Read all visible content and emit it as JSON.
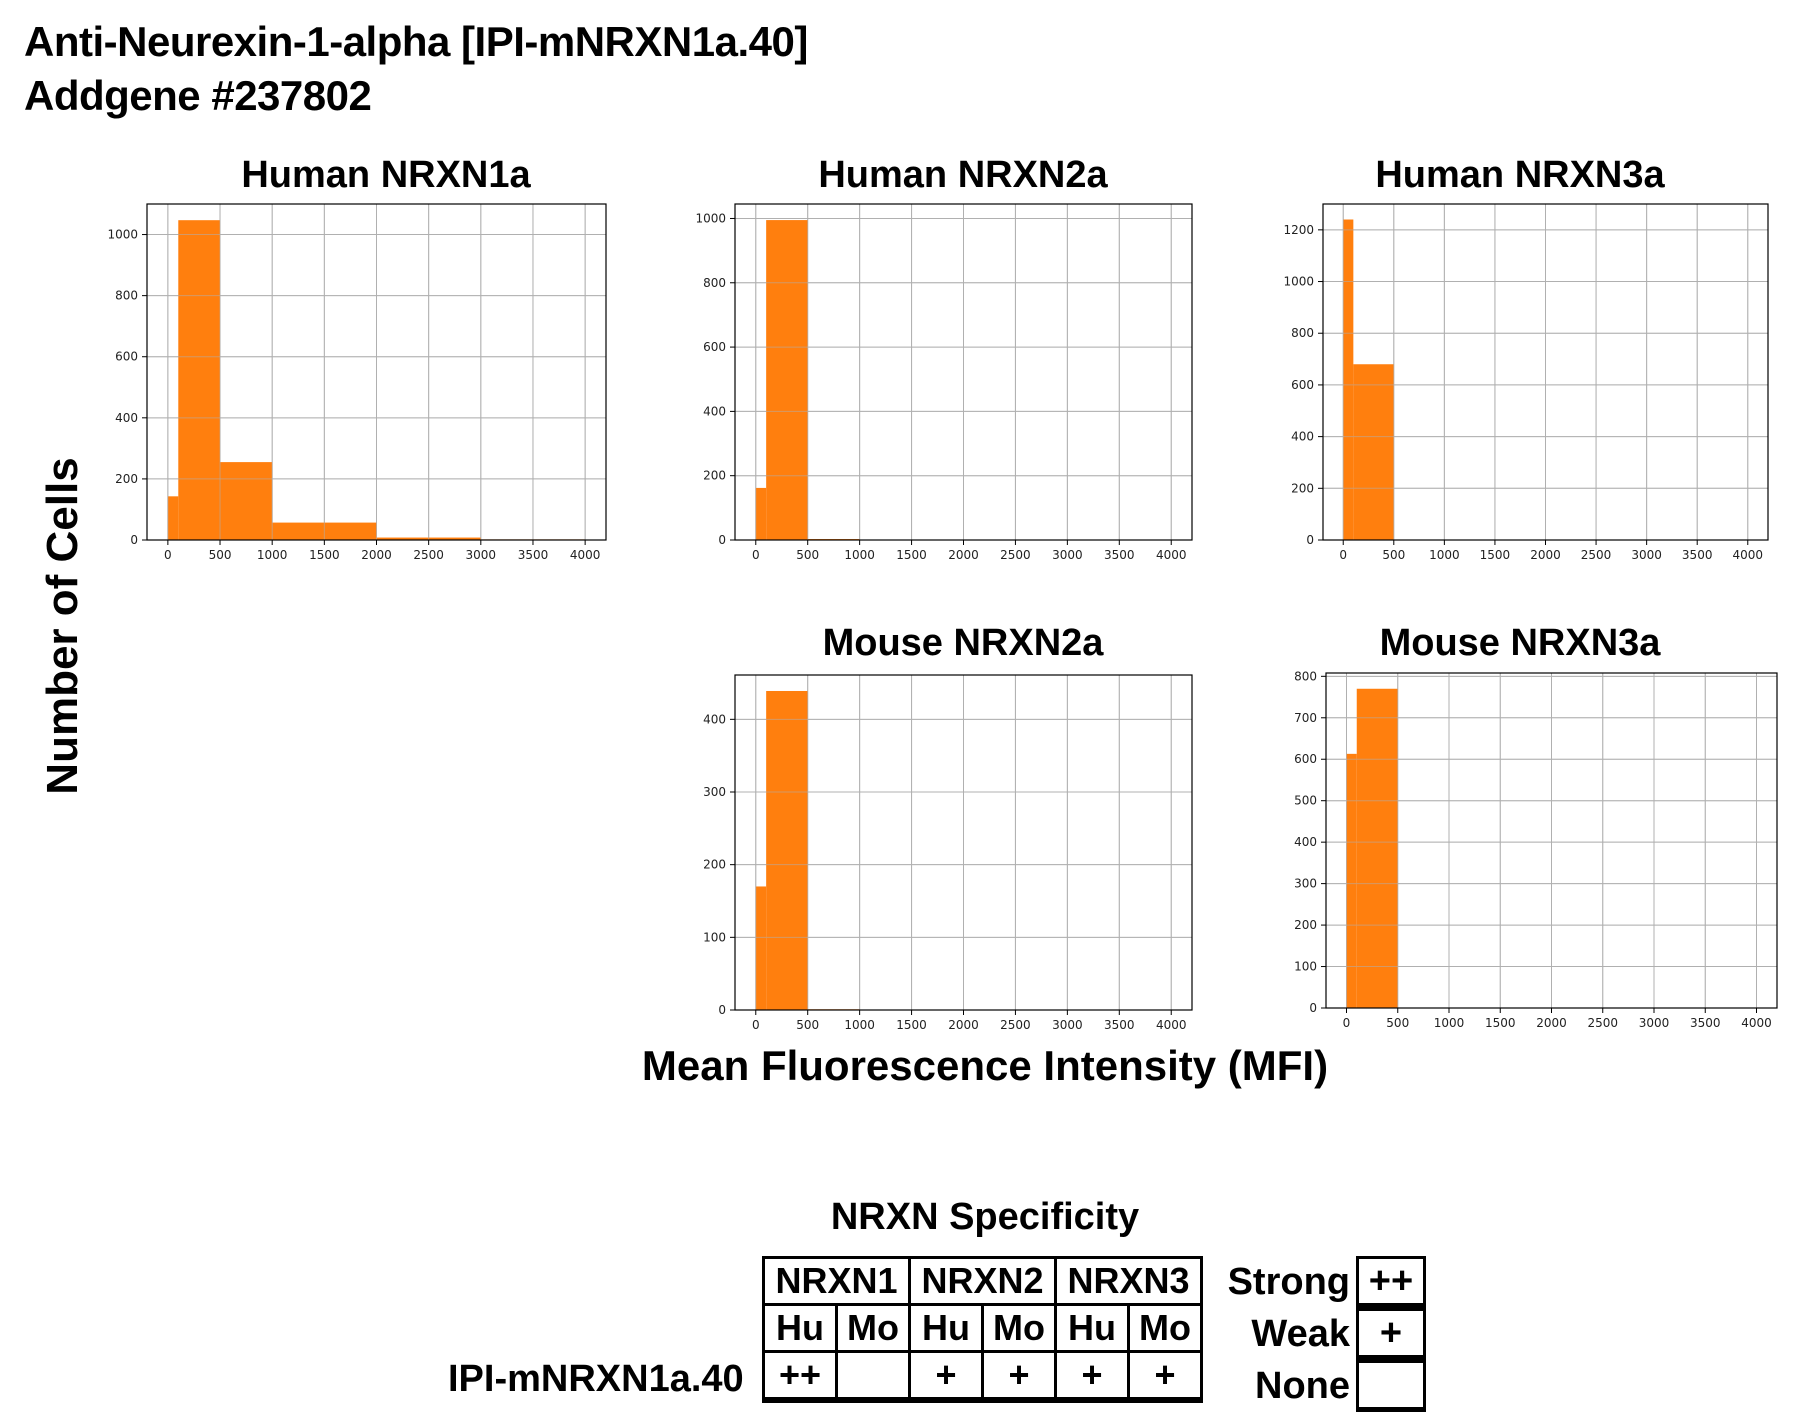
{
  "header": {
    "title_line1": "Anti-Neurexin-1-alpha [IPI-mNRXN1a.40]",
    "title_line2": "Addgene #237802"
  },
  "axis_labels": {
    "ylabel": "Number of Cells",
    "xlabel": "Mean Fluorescence Intensity (MFI)"
  },
  "colors": {
    "bar": "#ff7f0e",
    "grid": "#b0b0b0",
    "axis": "#000000"
  },
  "chart_data": [
    {
      "type": "bar",
      "title": "Human NRXN1a",
      "xlabel": "Mean Fluorescence Intensity (MFI)",
      "ylabel": "Number of Cells",
      "bins": [
        [
          0,
          100
        ],
        [
          100,
          500
        ],
        [
          500,
          1000
        ],
        [
          1000,
          2000
        ],
        [
          2000,
          3000
        ],
        [
          3000,
          4000
        ]
      ],
      "values": [
        143,
        1047,
        255,
        57,
        8,
        2
      ],
      "xlim": [
        -200,
        4200
      ],
      "ylim": [
        0,
        1100
      ],
      "xticks": [
        0,
        500,
        1000,
        1500,
        2000,
        2500,
        3000,
        3500,
        4000
      ],
      "yticks": [
        0,
        200,
        400,
        600,
        800,
        1000
      ],
      "grid": true
    },
    {
      "type": "bar",
      "title": "Human NRXN2a",
      "xlabel": "Mean Fluorescence Intensity (MFI)",
      "ylabel": "Number of Cells",
      "bins": [
        [
          0,
          100
        ],
        [
          100,
          500
        ],
        [
          500,
          1000
        ],
        [
          1000,
          2000
        ],
        [
          2000,
          3000
        ],
        [
          3000,
          4000
        ]
      ],
      "values": [
        162,
        995,
        3,
        0,
        0,
        0
      ],
      "xlim": [
        -200,
        4200
      ],
      "ylim": [
        0,
        1045
      ],
      "xticks": [
        0,
        500,
        1000,
        1500,
        2000,
        2500,
        3000,
        3500,
        4000
      ],
      "yticks": [
        0,
        200,
        400,
        600,
        800,
        1000
      ],
      "grid": true
    },
    {
      "type": "bar",
      "title": "Human NRXN3a",
      "xlabel": "Mean Fluorescence Intensity (MFI)",
      "ylabel": "Number of Cells",
      "bins": [
        [
          0,
          100
        ],
        [
          100,
          500
        ],
        [
          500,
          1000
        ],
        [
          1000,
          2000
        ],
        [
          2000,
          3000
        ],
        [
          3000,
          4000
        ]
      ],
      "values": [
        1240,
        680,
        0,
        0,
        0,
        0
      ],
      "xlim": [
        -200,
        4200
      ],
      "ylim": [
        0,
        1300
      ],
      "xticks": [
        0,
        500,
        1000,
        1500,
        2000,
        2500,
        3000,
        3500,
        4000
      ],
      "yticks": [
        0,
        200,
        400,
        600,
        800,
        1000,
        1200
      ],
      "grid": true
    },
    {
      "type": "bar",
      "title": "Mouse NRXN2a",
      "xlabel": "Mean Fluorescence Intensity (MFI)",
      "ylabel": "Number of Cells",
      "bins": [
        [
          0,
          100
        ],
        [
          100,
          500
        ],
        [
          500,
          1000
        ],
        [
          1000,
          2000
        ],
        [
          2000,
          3000
        ],
        [
          3000,
          4000
        ]
      ],
      "values": [
        170,
        439,
        1,
        0,
        0,
        0
      ],
      "xlim": [
        -200,
        4200
      ],
      "ylim": [
        0,
        461
      ],
      "xticks": [
        0,
        500,
        1000,
        1500,
        2000,
        2500,
        3000,
        3500,
        4000
      ],
      "yticks": [
        0,
        100,
        200,
        300,
        400
      ],
      "grid": true
    },
    {
      "type": "bar",
      "title": "Mouse NRXN3a",
      "xlabel": "Mean Fluorescence Intensity (MFI)",
      "ylabel": "Number of Cells",
      "bins": [
        [
          0,
          100
        ],
        [
          100,
          500
        ],
        [
          500,
          1000
        ],
        [
          1000,
          2000
        ],
        [
          2000,
          3000
        ],
        [
          3000,
          4000
        ]
      ],
      "values": [
        613,
        770,
        0,
        0,
        0,
        0
      ],
      "xlim": [
        -200,
        4200
      ],
      "ylim": [
        0,
        808
      ],
      "xticks": [
        0,
        500,
        1000,
        1500,
        2000,
        2500,
        3000,
        3500,
        4000
      ],
      "yticks": [
        0,
        100,
        200,
        300,
        400,
        500,
        600,
        700,
        800
      ],
      "grid": true
    }
  ],
  "specificity": {
    "title": "NRXN Specificity",
    "groups": [
      "NRXN1",
      "NRXN2",
      "NRXN3"
    ],
    "species": [
      "Hu",
      "Mo",
      "Hu",
      "Mo",
      "Hu",
      "Mo"
    ],
    "row_label": "IPI-mNRXN1a.40",
    "values": [
      "++",
      "",
      "+",
      "+",
      "+",
      "+"
    ],
    "legend": [
      {
        "label": "Strong",
        "symbol": "++"
      },
      {
        "label": "Weak",
        "symbol": "+"
      },
      {
        "label": "None",
        "symbol": ""
      }
    ]
  }
}
